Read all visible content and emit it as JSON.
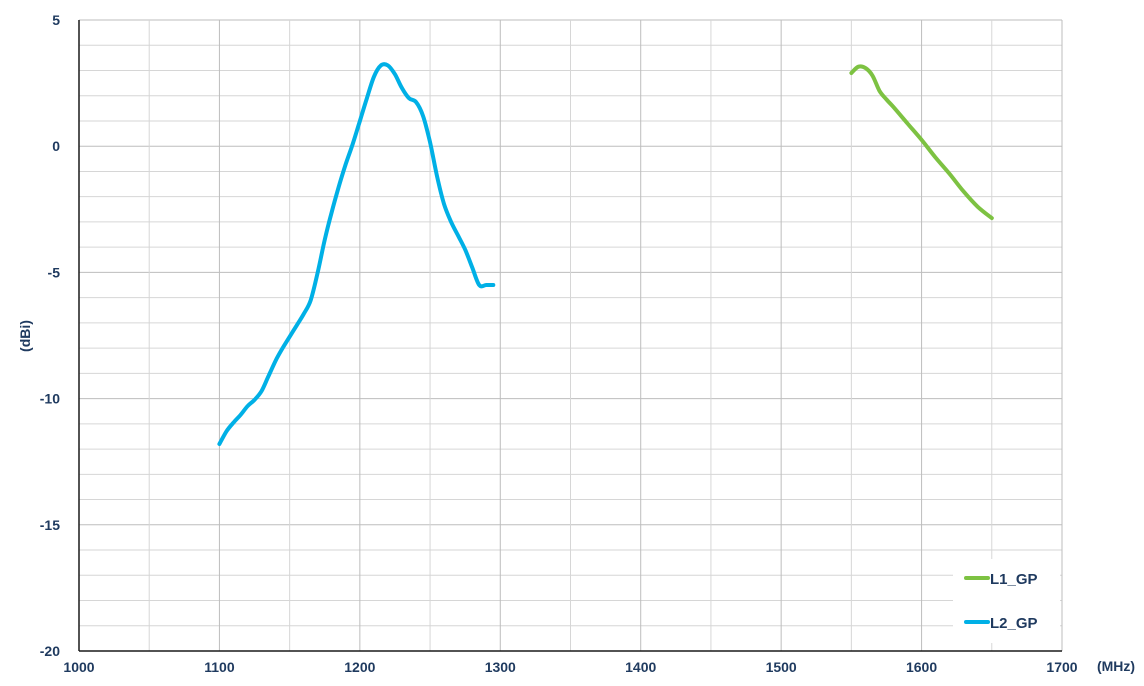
{
  "chart_data": {
    "type": "line",
    "title": "",
    "xlabel": "(MHz)",
    "ylabel": "(dBi)",
    "xlim": [
      1000,
      1700
    ],
    "ylim": [
      -20,
      5
    ],
    "x_ticks": [
      1000,
      1100,
      1200,
      1300,
      1400,
      1500,
      1600,
      1700
    ],
    "y_ticks": [
      5,
      0,
      -5,
      -10,
      -15,
      -20
    ],
    "x_minor_step": 50,
    "y_minor_step": 1,
    "grid": true,
    "legend_position": "bottom-right",
    "series": [
      {
        "name": "L1_GP",
        "color": "#7dc242",
        "x": [
          1550,
          1555,
          1560,
          1565,
          1570,
          1575,
          1580,
          1590,
          1600,
          1610,
          1620,
          1630,
          1640,
          1650
        ],
        "y": [
          2.9,
          3.15,
          3.1,
          2.8,
          2.2,
          1.85,
          1.55,
          0.9,
          0.25,
          -0.45,
          -1.1,
          -1.8,
          -2.4,
          -2.85
        ]
      },
      {
        "name": "L2_GP",
        "color": "#00b0e6",
        "x": [
          1100,
          1105,
          1110,
          1115,
          1120,
          1125,
          1130,
          1135,
          1140,
          1145,
          1150,
          1155,
          1160,
          1165,
          1170,
          1175,
          1180,
          1185,
          1190,
          1195,
          1200,
          1205,
          1210,
          1215,
          1220,
          1225,
          1230,
          1235,
          1240,
          1245,
          1250,
          1255,
          1260,
          1265,
          1270,
          1275,
          1280,
          1285,
          1290,
          1295
        ],
        "y": [
          -11.8,
          -11.3,
          -10.95,
          -10.65,
          -10.3,
          -10.05,
          -9.7,
          -9.1,
          -8.5,
          -8.0,
          -7.55,
          -7.1,
          -6.65,
          -6.1,
          -5.0,
          -3.7,
          -2.6,
          -1.6,
          -0.7,
          0.1,
          1.0,
          1.9,
          2.75,
          3.2,
          3.2,
          2.85,
          2.3,
          1.9,
          1.75,
          1.2,
          0.15,
          -1.2,
          -2.3,
          -3.0,
          -3.55,
          -4.1,
          -4.8,
          -5.5,
          -5.5,
          -5.5
        ]
      }
    ]
  }
}
